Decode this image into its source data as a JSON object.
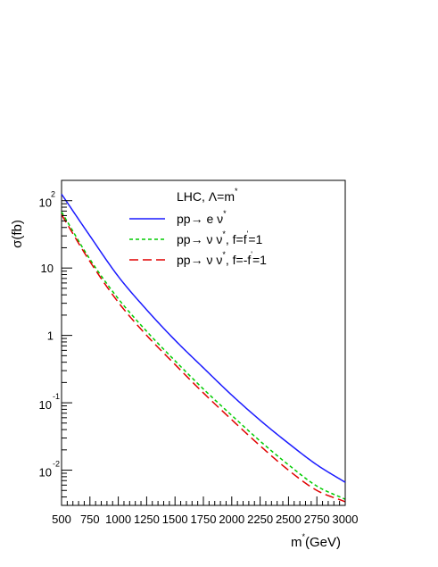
{
  "chart_data": {
    "type": "line",
    "title": "",
    "xlabel": {
      "base": "m",
      "sup": "*",
      "unit": "(GeV)"
    },
    "ylabel": "σ(fb)",
    "xlim": [
      500,
      3000
    ],
    "ylim": [
      0.003,
      200
    ],
    "y_scale": "log",
    "grid": false,
    "x_ticks": [
      500,
      750,
      1000,
      1250,
      1500,
      1750,
      2000,
      2250,
      2500,
      2750,
      3000
    ],
    "x_tick_labels": [
      "500",
      "750",
      "1000",
      "1250",
      "1500",
      "1750",
      "2000",
      "2250",
      "2500",
      "2750",
      "3000"
    ],
    "y_ticks": [
      {
        "value": 100,
        "base": "10",
        "exp": "2"
      },
      {
        "value": 10,
        "base": "10",
        "exp": ""
      },
      {
        "value": 1,
        "base": "1",
        "exp": ""
      },
      {
        "value": 0.1,
        "base": "10",
        "exp": "-1"
      },
      {
        "value": 0.01,
        "base": "10",
        "exp": "-2"
      }
    ],
    "legend": {
      "placement": "top-right",
      "header": {
        "text": "LHC, Λ=m",
        "sup": "*"
      },
      "entries": [
        {
          "text": "pp→  e ν",
          "sup": "*",
          "suffix": ""
        },
        {
          "text": "pp→  ν ν",
          "sup": "*",
          "suffix": ", f=f",
          "suffix_sup": "'",
          "tail": "=1"
        },
        {
          "text": "pp→  ν ν",
          "sup": "*",
          "suffix": ", f=-f",
          "suffix_sup": "'",
          "tail": "=1"
        }
      ]
    },
    "series": [
      {
        "color": "#1a1aff",
        "style": "solid",
        "x": [
          500,
          750,
          1000,
          1250,
          1500,
          1750,
          2000,
          2250,
          2500,
          2750,
          3000
        ],
        "y": [
          125,
          30,
          7.5,
          2.4,
          0.85,
          0.33,
          0.13,
          0.055,
          0.025,
          0.012,
          0.0066
        ]
      },
      {
        "color": "#00cc00",
        "style": "short-dash",
        "x": [
          500,
          750,
          1000,
          1250,
          1500,
          1750,
          2000,
          2250,
          2500,
          2750,
          3000
        ],
        "y": [
          68,
          13.5,
          3.5,
          1.15,
          0.42,
          0.16,
          0.065,
          0.027,
          0.012,
          0.0058,
          0.0037
        ]
      },
      {
        "color": "#e00000",
        "style": "long-dash",
        "x": [
          500,
          750,
          1000,
          1250,
          1500,
          1750,
          2000,
          2250,
          2500,
          2750,
          3000
        ],
        "y": [
          62,
          12.5,
          3.1,
          1.0,
          0.37,
          0.14,
          0.056,
          0.023,
          0.01,
          0.005,
          0.0034
        ]
      }
    ]
  }
}
